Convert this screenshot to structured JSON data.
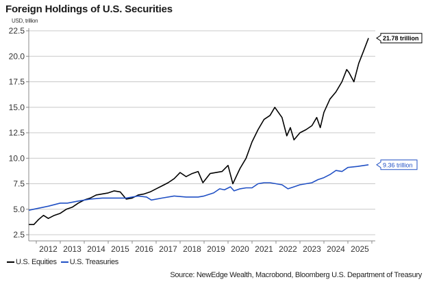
{
  "chart_data": {
    "type": "line",
    "title": "Foreign Holdings of U.S. Securities",
    "ylabel": "USD, trillion",
    "xlabel": "",
    "ylim": [
      2.5,
      22.5
    ],
    "xlim": [
      2011.69,
      2025.95
    ],
    "yticks": [
      "2.5",
      "5.0",
      "7.5",
      "10.0",
      "12.5",
      "15.0",
      "17.5",
      "20.0",
      "22.5"
    ],
    "ytick_values": [
      2.5,
      5.0,
      7.5,
      10.0,
      12.5,
      15.0,
      17.5,
      20.0,
      22.5
    ],
    "xticks": [
      "2012",
      "2013",
      "2014",
      "2015",
      "2016",
      "2017",
      "2018",
      "2019",
      "2020",
      "2021",
      "2022",
      "2023",
      "2024",
      "2025"
    ],
    "grid": true,
    "legend_position": "bottom-left",
    "series": [
      {
        "name": "U.S. Equities",
        "color": "#000000",
        "x": [
          2011.69,
          2011.9,
          2012.1,
          2012.3,
          2012.5,
          2012.75,
          2013.0,
          2013.25,
          2013.5,
          2013.75,
          2014.0,
          2014.25,
          2014.5,
          2014.75,
          2015.0,
          2015.25,
          2015.5,
          2015.75,
          2016.0,
          2016.25,
          2016.5,
          2016.75,
          2017.0,
          2017.25,
          2017.5,
          2017.75,
          2018.0,
          2018.25,
          2018.5,
          2018.75,
          2018.95,
          2019.25,
          2019.5,
          2019.75,
          2020.0,
          2020.2,
          2020.5,
          2020.75,
          2021.0,
          2021.25,
          2021.5,
          2021.75,
          2021.95,
          2022.25,
          2022.45,
          2022.6,
          2022.75,
          2023.0,
          2023.25,
          2023.5,
          2023.7,
          2023.85,
          2024.0,
          2024.25,
          2024.5,
          2024.75,
          2024.95,
          2025.05,
          2025.25,
          2025.45,
          2025.65,
          2025.86
        ],
        "values": [
          3.5,
          3.5,
          4.0,
          4.4,
          4.1,
          4.4,
          4.6,
          5.0,
          5.2,
          5.6,
          5.9,
          6.1,
          6.4,
          6.5,
          6.6,
          6.8,
          6.7,
          6.0,
          6.1,
          6.4,
          6.5,
          6.7,
          7.0,
          7.3,
          7.6,
          8.0,
          8.6,
          8.2,
          8.5,
          8.7,
          7.6,
          8.5,
          8.6,
          8.7,
          9.3,
          7.5,
          9.0,
          10.0,
          11.6,
          12.8,
          13.8,
          14.2,
          15.0,
          14.0,
          12.2,
          13.0,
          11.8,
          12.5,
          12.8,
          13.2,
          14.0,
          13.0,
          14.5,
          15.8,
          16.5,
          17.5,
          18.7,
          18.4,
          17.5,
          19.3,
          20.5,
          21.78
        ]
      },
      {
        "name": "U.S. Treasuries",
        "color": "#1f4fc4",
        "x": [
          2011.69,
          2012.5,
          2013.0,
          2013.3,
          2013.75,
          2014.25,
          2014.75,
          2015.25,
          2015.75,
          2016.25,
          2016.6,
          2016.8,
          2017.25,
          2017.75,
          2018.25,
          2018.75,
          2019.0,
          2019.4,
          2019.65,
          2019.85,
          2020.1,
          2020.25,
          2020.5,
          2020.75,
          2021.0,
          2021.25,
          2021.5,
          2021.75,
          2022.0,
          2022.25,
          2022.5,
          2022.75,
          2023.0,
          2023.25,
          2023.5,
          2023.75,
          2024.0,
          2024.25,
          2024.5,
          2024.75,
          2025.0,
          2025.4,
          2025.86
        ],
        "values": [
          4.9,
          5.3,
          5.6,
          5.6,
          5.8,
          6.0,
          6.1,
          6.1,
          6.1,
          6.3,
          6.2,
          5.9,
          6.1,
          6.3,
          6.2,
          6.2,
          6.3,
          6.6,
          7.0,
          6.9,
          7.2,
          6.8,
          7.0,
          7.1,
          7.1,
          7.5,
          7.6,
          7.6,
          7.5,
          7.4,
          7.0,
          7.2,
          7.4,
          7.5,
          7.6,
          7.9,
          8.1,
          8.4,
          8.8,
          8.7,
          9.1,
          9.2,
          9.36
        ]
      }
    ],
    "annotations": [
      {
        "series": "U.S. Equities",
        "text": "21.78 trillion",
        "value": 21.78
      },
      {
        "series": "U.S. Treasuries",
        "text": "9.36 trillion",
        "value": 9.36
      }
    ],
    "source": "Source: NewEdge Wealth, Macrobond, Bloomberg U.S. Department of Treasury"
  }
}
